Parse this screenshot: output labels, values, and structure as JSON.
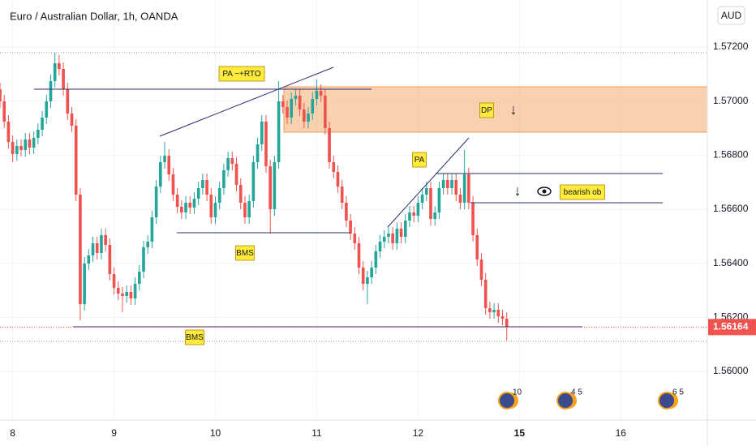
{
  "chart_data": {
    "type": "candlestick",
    "title": "Euro / Australian Dollar, 1h, OANDA",
    "currency": "AUD",
    "up_color": "#26a69a",
    "down_color": "#ef5350",
    "grid": true,
    "xlim": [
      0,
      167.5
    ],
    "xticks": [
      {
        "value": 3,
        "label": "8"
      },
      {
        "value": 27,
        "label": "9"
      },
      {
        "value": 51,
        "label": "10"
      },
      {
        "value": 75,
        "label": "11"
      },
      {
        "value": 99,
        "label": "12"
      },
      {
        "value": 123,
        "label": "15"
      },
      {
        "value": 147,
        "label": "16"
      }
    ],
    "ylim": [
      1.5582,
      1.57374
    ],
    "yticks": [
      {
        "value": 1.572,
        "label": "1.57200"
      },
      {
        "value": 1.57,
        "label": "1.57000"
      },
      {
        "value": 1.568,
        "label": "1.56800"
      },
      {
        "value": 1.566,
        "label": "1.56600"
      },
      {
        "value": 1.564,
        "label": "1.56400"
      },
      {
        "value": 1.562,
        "label": "1.56200"
      },
      {
        "value": 1.56,
        "label": "1.56000"
      }
    ],
    "last_price": {
      "value": 1.56164,
      "label": "1.56164"
    },
    "annotations": [
      "PA ~+RTO",
      "DP",
      "PA",
      "bearish ob",
      "BMS",
      "BMS"
    ],
    "events": [
      "10",
      "4 5",
      "6 5"
    ],
    "x": [
      0,
      1,
      2,
      3,
      4,
      5,
      6,
      7,
      8,
      9,
      10,
      11,
      12,
      13,
      14,
      15,
      16,
      17,
      18,
      19,
      20,
      21,
      22,
      23,
      24,
      25,
      26,
      27,
      28,
      29,
      30,
      31,
      32,
      33,
      34,
      35,
      36,
      37,
      38,
      39,
      40,
      41,
      42,
      43,
      44,
      45,
      46,
      47,
      48,
      49,
      50,
      51,
      52,
      53,
      54,
      55,
      56,
      57,
      58,
      59,
      60,
      61,
      62,
      63,
      64,
      65,
      66,
      67,
      68,
      69,
      70,
      71,
      72,
      73,
      74,
      75,
      76,
      77,
      78,
      79,
      80,
      81,
      82,
      83,
      84,
      85,
      86,
      87,
      88,
      89,
      90,
      91,
      92,
      93,
      94,
      95,
      96,
      97,
      98,
      99,
      100,
      101,
      102,
      103,
      104,
      105,
      106,
      107,
      108,
      109,
      110,
      111,
      112,
      113,
      114,
      115,
      116,
      117,
      118,
      119,
      120
    ],
    "open": [
      1.57044,
      1.56999,
      1.56924,
      1.56849,
      1.56804,
      1.56834,
      1.56819,
      1.56858,
      1.56828,
      1.56864,
      1.56894,
      1.56939,
      1.56999,
      1.57074,
      1.5714,
      1.57119,
      1.57044,
      1.56954,
      1.56909,
      1.56654,
      1.56249,
      1.56399,
      1.56429,
      1.56474,
      1.56438,
      1.56504,
      1.56468,
      1.5636,
      1.56309,
      1.56288,
      1.56279,
      1.56294,
      1.5627,
      1.56324,
      1.56369,
      1.56459,
      1.5648,
      1.5657,
      1.56684,
      1.56774,
      1.56798,
      1.56729,
      1.56654,
      1.56609,
      1.56588,
      1.56624,
      1.56606,
      1.56639,
      1.56678,
      1.56708,
      1.56654,
      1.5657,
      1.56624,
      1.56678,
      1.56744,
      1.56789,
      1.56768,
      1.5669,
      1.56624,
      1.5657,
      1.5663,
      1.56774,
      1.5684,
      1.56924,
      1.56759,
      1.566,
      1.56774,
      1.56999,
      1.56978,
      1.56939,
      1.57008,
      1.5702,
      1.56969,
      1.56924,
      1.56954,
      1.57008,
      1.57038,
      1.5702,
      1.569,
      1.56774,
      1.56738,
      1.56684,
      1.56624,
      1.56558,
      1.5651,
      1.56474,
      1.56384,
      1.56324,
      1.56348,
      1.56384,
      1.56444,
      1.5648,
      1.56498,
      1.5651,
      1.56474,
      1.56528,
      1.56498,
      1.56558,
      1.56588,
      1.56576,
      1.56624,
      1.56654,
      1.56678,
      1.56564,
      1.56588,
      1.56678,
      1.56708,
      1.56678,
      1.56708,
      1.56654,
      1.56624,
      1.56729,
      1.56624,
      1.56504,
      1.56414,
      1.56339,
      1.56234,
      1.56219,
      1.56228,
      1.56204,
      1.56195
    ],
    "high": [
      1.57068,
      1.57023,
      1.56948,
      1.56873,
      1.56858,
      1.56858,
      1.56882,
      1.56882,
      1.56888,
      1.56918,
      1.56963,
      1.57023,
      1.57098,
      1.57179,
      1.5717,
      1.57143,
      1.57068,
      1.56978,
      1.56933,
      1.56678,
      1.56423,
      1.56453,
      1.56498,
      1.56498,
      1.56528,
      1.56528,
      1.56492,
      1.56384,
      1.56333,
      1.56312,
      1.56318,
      1.56318,
      1.56348,
      1.56393,
      1.56483,
      1.56504,
      1.56594,
      1.56708,
      1.56798,
      1.56849,
      1.56822,
      1.56753,
      1.56678,
      1.56633,
      1.56648,
      1.56648,
      1.56663,
      1.56702,
      1.56732,
      1.56732,
      1.56678,
      1.56648,
      1.56702,
      1.56768,
      1.56813,
      1.56813,
      1.56792,
      1.56714,
      1.56648,
      1.56654,
      1.56798,
      1.56864,
      1.56948,
      1.56948,
      1.56783,
      1.56798,
      1.57074,
      1.57023,
      1.57002,
      1.57032,
      1.57044,
      1.57044,
      1.56993,
      1.56978,
      1.57032,
      1.5708,
      1.57062,
      1.57044,
      1.56924,
      1.56798,
      1.56762,
      1.56708,
      1.56648,
      1.56582,
      1.56534,
      1.56498,
      1.56408,
      1.56372,
      1.56408,
      1.56468,
      1.56504,
      1.56522,
      1.56534,
      1.56534,
      1.56552,
      1.56552,
      1.56582,
      1.56612,
      1.56612,
      1.56648,
      1.56678,
      1.56702,
      1.56702,
      1.56612,
      1.56702,
      1.56732,
      1.56732,
      1.56732,
      1.56732,
      1.56678,
      1.56819,
      1.56753,
      1.56648,
      1.56528,
      1.56438,
      1.56363,
      1.56258,
      1.56252,
      1.56252,
      1.56228,
      1.56219
    ],
    "low": [
      1.56975,
      1.569,
      1.56825,
      1.56774,
      1.5678,
      1.56795,
      1.56795,
      1.56804,
      1.56804,
      1.5684,
      1.5687,
      1.56915,
      1.56975,
      1.5705,
      1.57095,
      1.5702,
      1.5693,
      1.56885,
      1.5663,
      1.56189,
      1.56225,
      1.56375,
      1.56405,
      1.56414,
      1.56414,
      1.56444,
      1.56336,
      1.56285,
      1.56264,
      1.56219,
      1.56255,
      1.56246,
      1.56246,
      1.563,
      1.56345,
      1.56435,
      1.56456,
      1.56546,
      1.5666,
      1.5675,
      1.56705,
      1.5663,
      1.56585,
      1.56564,
      1.56564,
      1.56582,
      1.56582,
      1.56615,
      1.56654,
      1.5663,
      1.56546,
      1.56546,
      1.566,
      1.56654,
      1.5672,
      1.56744,
      1.56666,
      1.566,
      1.56546,
      1.56546,
      1.56606,
      1.5675,
      1.56816,
      1.56735,
      1.5651,
      1.56576,
      1.5675,
      1.56954,
      1.56915,
      1.56915,
      1.56984,
      1.56945,
      1.569,
      1.569,
      1.5693,
      1.56984,
      1.56996,
      1.56876,
      1.5675,
      1.56714,
      1.5666,
      1.566,
      1.56534,
      1.56486,
      1.5645,
      1.5636,
      1.563,
      1.56249,
      1.56324,
      1.5636,
      1.5642,
      1.56456,
      1.56474,
      1.5645,
      1.5645,
      1.56474,
      1.56474,
      1.56534,
      1.56552,
      1.56552,
      1.566,
      1.5663,
      1.5654,
      1.5654,
      1.56564,
      1.56654,
      1.56654,
      1.56654,
      1.5663,
      1.566,
      1.566,
      1.566,
      1.5648,
      1.5639,
      1.56315,
      1.5621,
      1.56195,
      1.56195,
      1.5618,
      1.56171,
      1.56114
    ],
    "close": [
      1.56999,
      1.56924,
      1.56849,
      1.56804,
      1.56834,
      1.56819,
      1.56858,
      1.56828,
      1.56864,
      1.56894,
      1.56939,
      1.56999,
      1.57074,
      1.5714,
      1.57119,
      1.57044,
      1.56954,
      1.56909,
      1.56654,
      1.56249,
      1.56399,
      1.56429,
      1.56474,
      1.56438,
      1.56504,
      1.56468,
      1.5636,
      1.56309,
      1.56288,
      1.56279,
      1.56294,
      1.5627,
      1.56324,
      1.56369,
      1.56459,
      1.5648,
      1.5657,
      1.56684,
      1.56774,
      1.56798,
      1.56729,
      1.56654,
      1.56609,
      1.56588,
      1.56624,
      1.56606,
      1.56639,
      1.56678,
      1.56708,
      1.56654,
      1.5657,
      1.56624,
      1.56678,
      1.56744,
      1.56789,
      1.56768,
      1.5669,
      1.56624,
      1.5657,
      1.5663,
      1.56774,
      1.5684,
      1.56924,
      1.56759,
      1.566,
      1.56774,
      1.56999,
      1.56978,
      1.56939,
      1.57008,
      1.5702,
      1.56969,
      1.56924,
      1.56954,
      1.57008,
      1.57038,
      1.5702,
      1.569,
      1.56774,
      1.56738,
      1.56684,
      1.56624,
      1.56558,
      1.5651,
      1.56474,
      1.56384,
      1.56324,
      1.56348,
      1.56384,
      1.56444,
      1.5648,
      1.56498,
      1.5651,
      1.56474,
      1.56528,
      1.56498,
      1.56558,
      1.56588,
      1.56576,
      1.56624,
      1.56654,
      1.56678,
      1.56564,
      1.56588,
      1.56678,
      1.56708,
      1.56678,
      1.56708,
      1.56654,
      1.56624,
      1.56729,
      1.56624,
      1.56504,
      1.56414,
      1.56339,
      1.56234,
      1.56219,
      1.56228,
      1.56204,
      1.56195,
      1.56164
    ]
  }
}
